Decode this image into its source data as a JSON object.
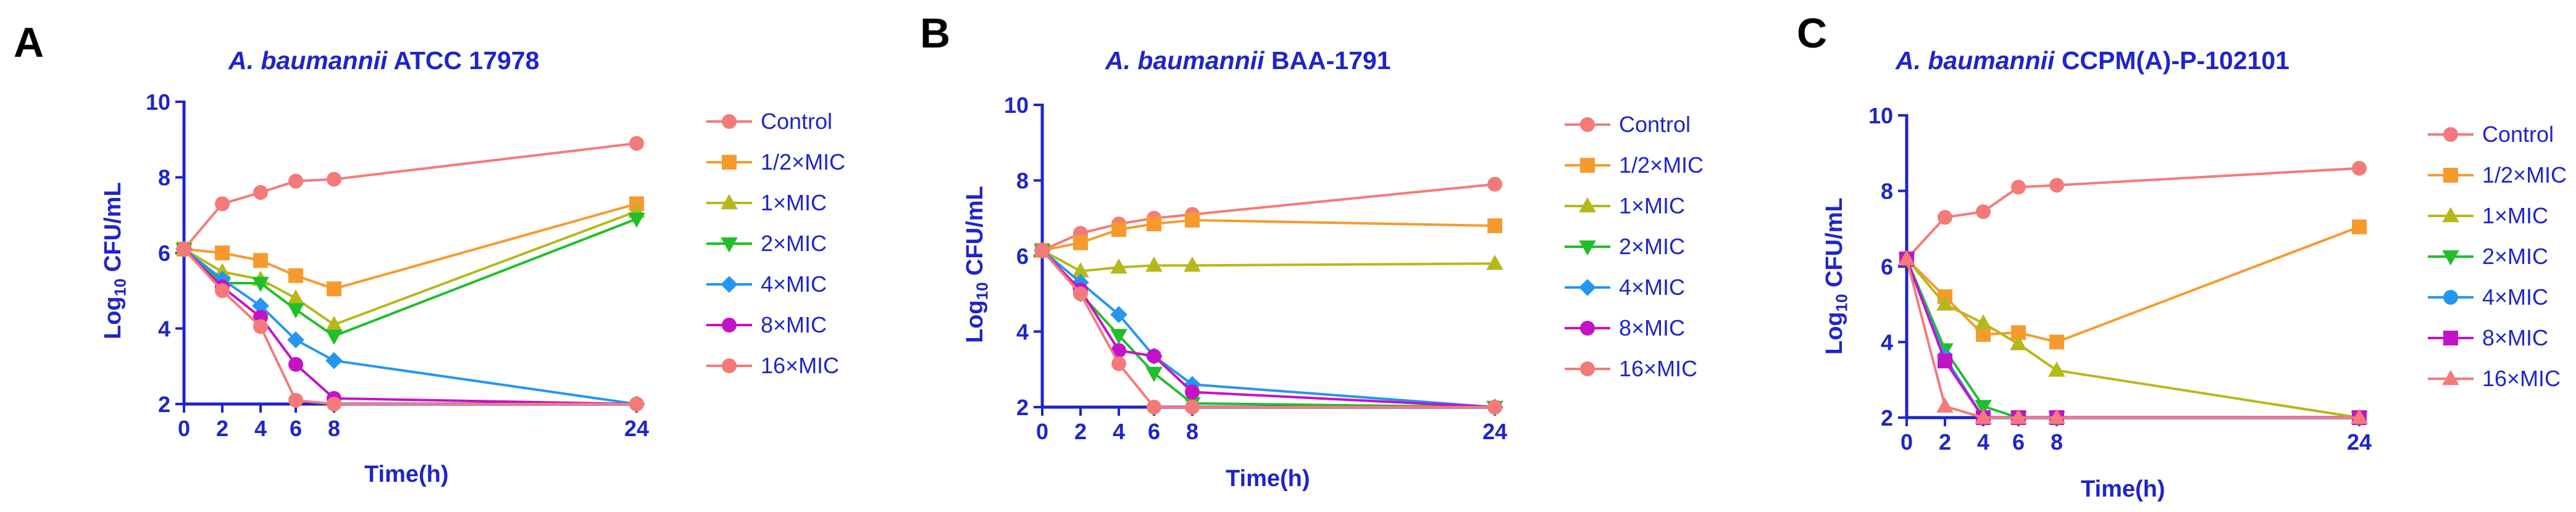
{
  "colors": {
    "axis": "#1f25c8",
    "Control": "#f47a7a",
    "1/2×MIC": "#f79a2e",
    "1×MIC": "#b6b81a",
    "2×MIC": "#1fbf2b",
    "4×MIC": "#2596f0",
    "8×MIC": "#c412c9",
    "16×MIC": "#f47a7a"
  },
  "chart_data": [
    {
      "letter": "A",
      "type": "line",
      "title": {
        "species": "A. baumannii",
        "strain": "ATCC 17978"
      },
      "xlabel": "Time(h)",
      "ylabel": {
        "main": "Log",
        "sub": "10",
        "rest": " CFU/mL"
      },
      "x_ticks": [
        0,
        2,
        4,
        6,
        8,
        24
      ],
      "y_ticks": [
        2,
        4,
        6,
        8,
        10
      ],
      "ylim": [
        2,
        10
      ],
      "legend_position": "right",
      "series": [
        {
          "name": "Control",
          "marker": "circle",
          "x": [
            0,
            2,
            4,
            6,
            8,
            24
          ],
          "y": [
            6.1,
            7.3,
            7.6,
            7.9,
            7.95,
            8.9
          ]
        },
        {
          "name": "1/2×MIC",
          "marker": "square",
          "x": [
            0,
            2,
            4,
            6,
            8,
            24
          ],
          "y": [
            6.1,
            6.0,
            5.8,
            5.4,
            5.05,
            7.3
          ]
        },
        {
          "name": "1×MIC",
          "marker": "triangle-up",
          "x": [
            0,
            2,
            4,
            6,
            8,
            24
          ],
          "y": [
            6.1,
            5.5,
            5.3,
            4.8,
            4.1,
            7.1
          ]
        },
        {
          "name": "2×MIC",
          "marker": "triangle-down",
          "x": [
            0,
            2,
            4,
            6,
            8,
            24
          ],
          "y": [
            6.1,
            5.2,
            5.2,
            4.5,
            3.8,
            6.9
          ]
        },
        {
          "name": "4×MIC",
          "marker": "diamond",
          "x": [
            0,
            2,
            4,
            6,
            8,
            24
          ],
          "y": [
            6.1,
            5.3,
            4.6,
            3.7,
            3.15,
            2.0
          ]
        },
        {
          "name": "8×MIC",
          "marker": "circle",
          "x": [
            0,
            2,
            4,
            6,
            8,
            24
          ],
          "y": [
            6.1,
            5.1,
            4.3,
            3.05,
            2.15,
            2.0
          ]
        },
        {
          "name": "16×MIC",
          "marker": "circle",
          "x": [
            0,
            2,
            4,
            6,
            8,
            24
          ],
          "y": [
            6.1,
            5.0,
            4.05,
            2.1,
            2.0,
            2.0
          ]
        }
      ]
    },
    {
      "letter": "B",
      "type": "line",
      "title": {
        "species": "A. baumannii",
        "strain": "BAA-1791"
      },
      "xlabel": "Time(h)",
      "ylabel": {
        "main": "Log",
        "sub": "10",
        "rest": " CFU/mL"
      },
      "x_ticks": [
        0,
        2,
        4,
        6,
        8,
        24
      ],
      "y_ticks": [
        2,
        4,
        6,
        8,
        10
      ],
      "ylim": [
        2,
        10
      ],
      "legend_position": "right",
      "series": [
        {
          "name": "Control",
          "marker": "circle",
          "x": [
            0,
            2,
            4,
            6,
            8,
            24
          ],
          "y": [
            6.15,
            6.6,
            6.85,
            7.0,
            7.1,
            7.9
          ]
        },
        {
          "name": "1/2×MIC",
          "marker": "square",
          "x": [
            0,
            2,
            4,
            6,
            8,
            24
          ],
          "y": [
            6.15,
            6.35,
            6.7,
            6.85,
            6.95,
            6.8
          ]
        },
        {
          "name": "1×MIC",
          "marker": "triangle-up",
          "x": [
            0,
            2,
            4,
            6,
            8,
            24
          ],
          "y": [
            6.15,
            5.6,
            5.7,
            5.75,
            5.75,
            5.8
          ]
        },
        {
          "name": "2×MIC",
          "marker": "triangle-down",
          "x": [
            0,
            2,
            4,
            6,
            8,
            24
          ],
          "y": [
            6.15,
            5.0,
            3.9,
            2.9,
            2.1,
            2.0
          ]
        },
        {
          "name": "4×MIC",
          "marker": "diamond",
          "x": [
            0,
            2,
            4,
            6,
            8,
            24
          ],
          "y": [
            6.15,
            5.3,
            4.45,
            3.35,
            2.6,
            2.0
          ]
        },
        {
          "name": "8×MIC",
          "marker": "circle",
          "x": [
            0,
            2,
            4,
            6,
            8,
            24
          ],
          "y": [
            6.15,
            5.1,
            3.5,
            3.35,
            2.4,
            2.0
          ]
        },
        {
          "name": "16×MIC",
          "marker": "circle",
          "x": [
            0,
            2,
            4,
            6,
            8,
            24
          ],
          "y": [
            6.15,
            5.0,
            3.15,
            2.0,
            2.0,
            2.0
          ]
        }
      ]
    },
    {
      "letter": "C",
      "type": "line",
      "title": {
        "species": "A. baumannii",
        "strain": "CCPM(A)-P-102101"
      },
      "xlabel": "Time(h)",
      "ylabel": {
        "main": "Log",
        "sub": "10",
        "rest": " CFU/mL"
      },
      "x_ticks": [
        0,
        2,
        4,
        6,
        8,
        24
      ],
      "y_ticks": [
        2,
        4,
        6,
        8,
        10
      ],
      "ylim": [
        2,
        10
      ],
      "legend_position": "right",
      "series": [
        {
          "name": "Control",
          "marker": "circle",
          "x": [
            0,
            2,
            4,
            6,
            8,
            24
          ],
          "y": [
            6.2,
            7.3,
            7.45,
            8.1,
            8.15,
            8.6
          ]
        },
        {
          "name": "1/2×MIC",
          "marker": "square",
          "x": [
            0,
            2,
            4,
            6,
            8,
            24
          ],
          "y": [
            6.2,
            5.2,
            4.2,
            4.25,
            4.0,
            7.05
          ]
        },
        {
          "name": "1×MIC",
          "marker": "triangle-up",
          "x": [
            0,
            2,
            4,
            6,
            8,
            24
          ],
          "y": [
            6.2,
            5.0,
            4.5,
            3.95,
            3.25,
            2.0
          ]
        },
        {
          "name": "2×MIC",
          "marker": "triangle-down",
          "x": [
            0,
            2,
            4,
            6,
            8,
            24
          ],
          "y": [
            6.2,
            3.8,
            2.3,
            2.0,
            2.0,
            2.0
          ]
        },
        {
          "name": "4×MIC",
          "marker": "circle",
          "x": [
            0,
            2,
            4,
            6,
            8,
            24
          ],
          "y": [
            6.2,
            3.6,
            2.0,
            2.0,
            2.0,
            2.0
          ]
        },
        {
          "name": "8×MIC",
          "marker": "square",
          "x": [
            0,
            2,
            4,
            6,
            8,
            24
          ],
          "y": [
            6.2,
            3.5,
            2.0,
            2.0,
            2.0,
            2.0
          ]
        },
        {
          "name": "16×MIC",
          "marker": "triangle-up",
          "x": [
            0,
            2,
            4,
            6,
            8,
            24
          ],
          "y": [
            6.2,
            2.3,
            2.0,
            2.0,
            2.0,
            2.0
          ]
        }
      ]
    }
  ]
}
